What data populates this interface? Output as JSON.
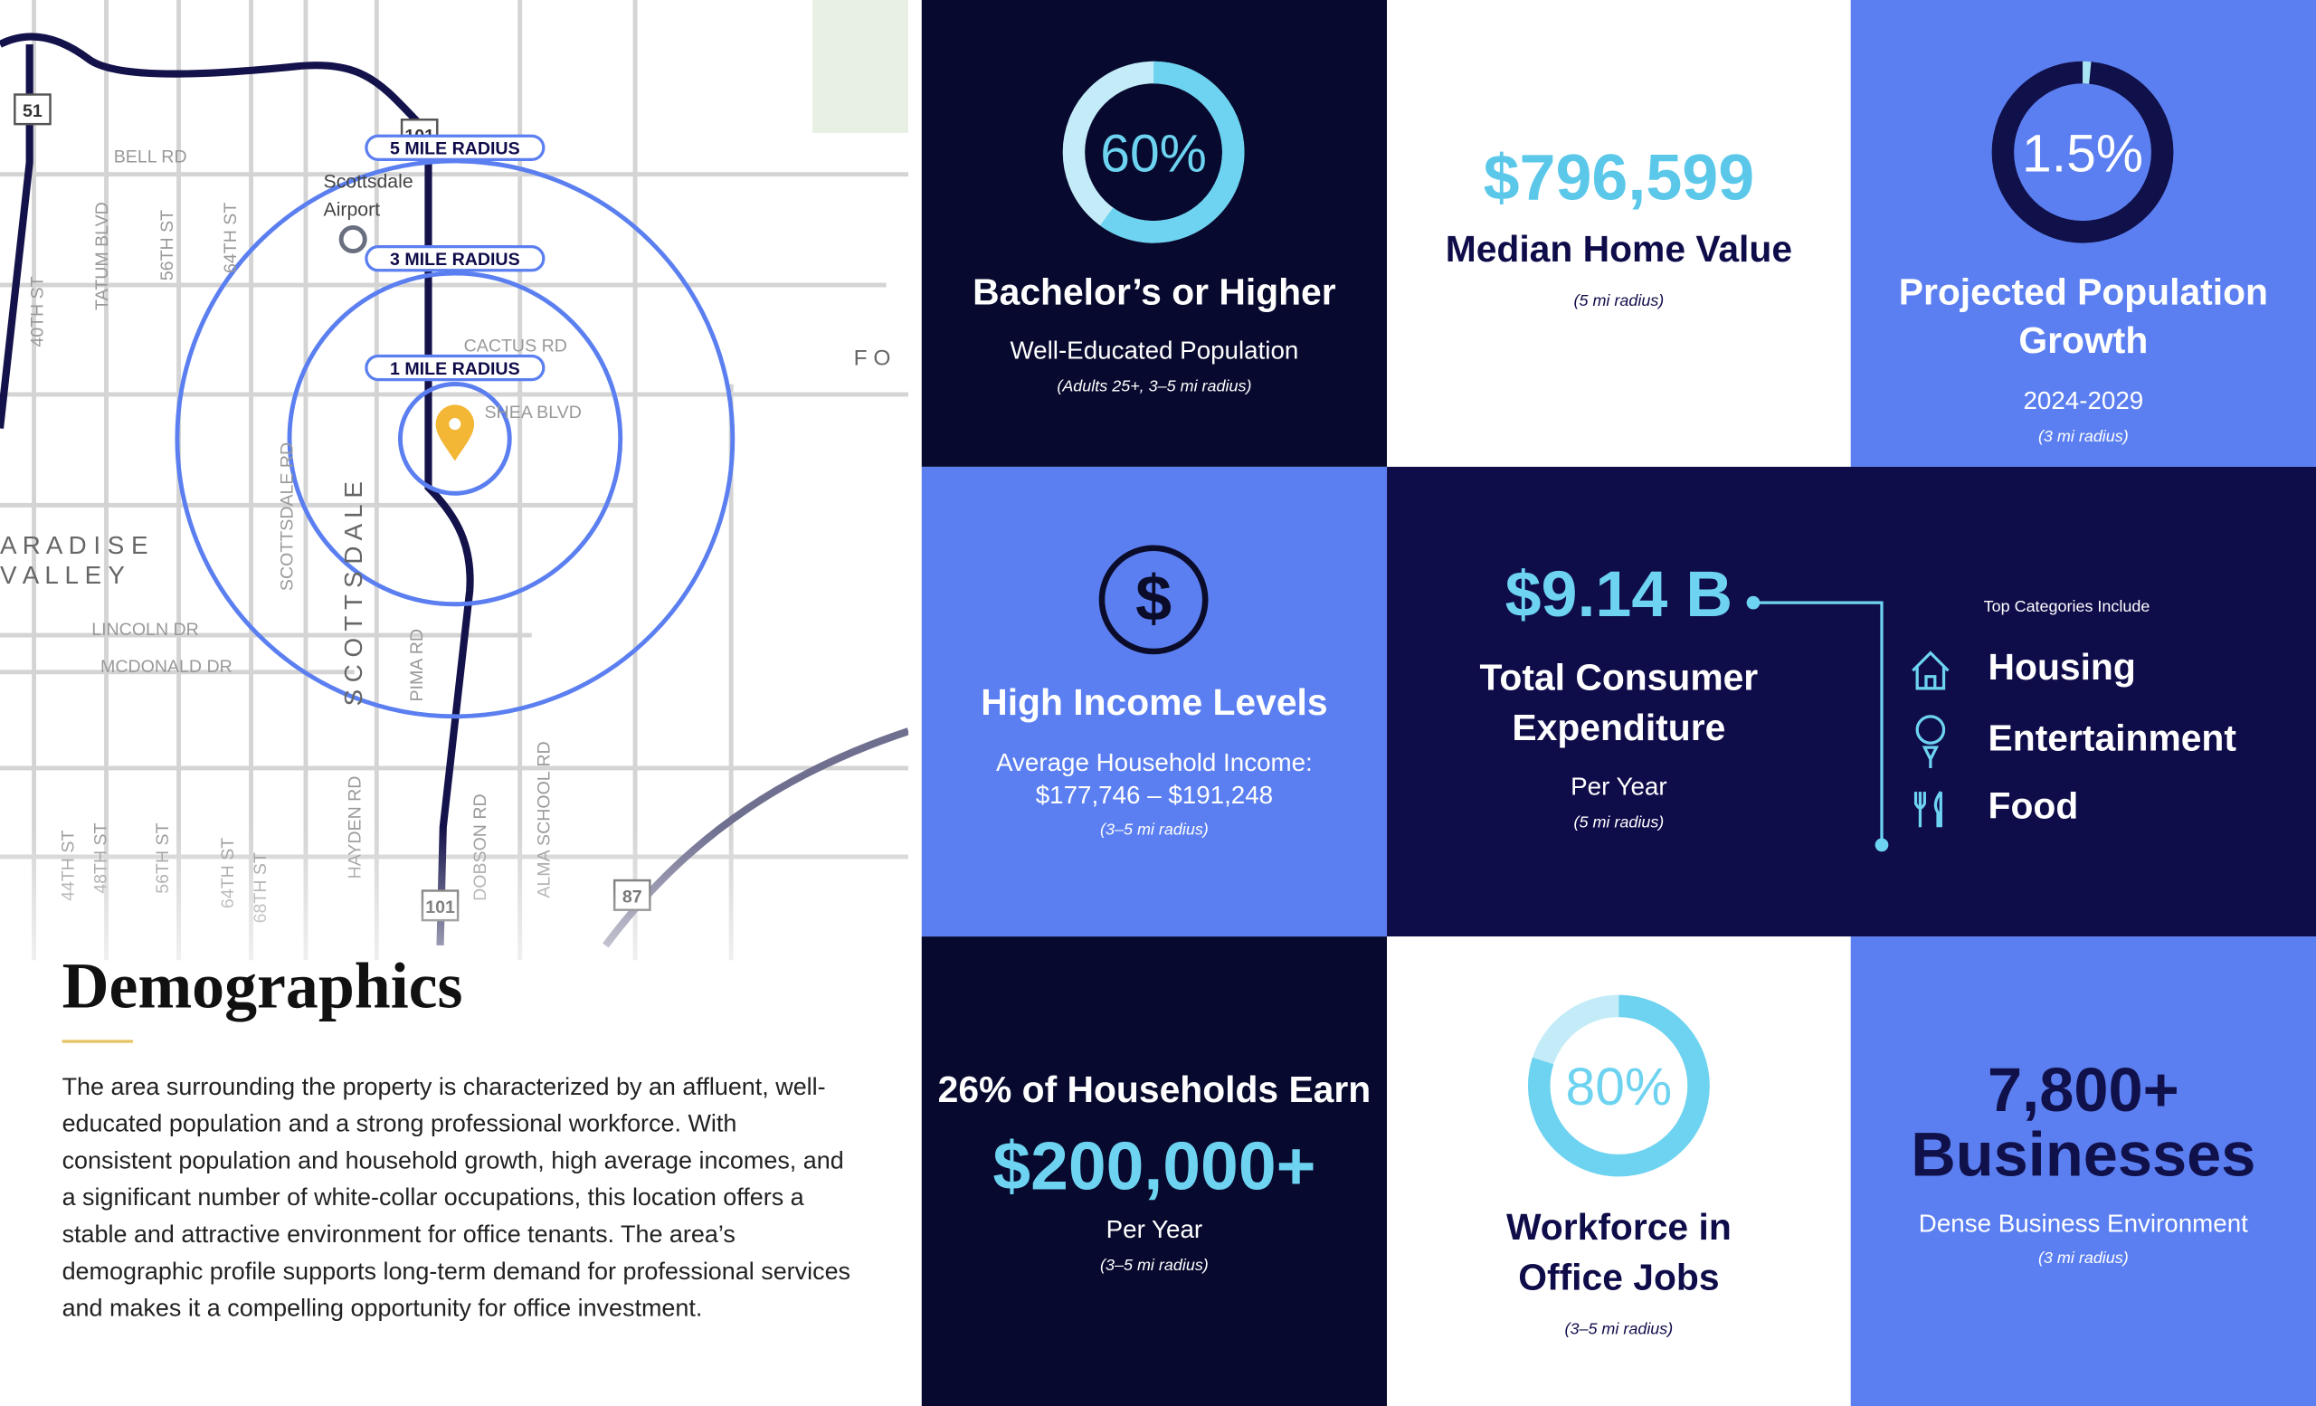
{
  "map": {
    "radius_labels": [
      "5 MILE RADIUS",
      "3 MILE RADIUS",
      "1 MILE RADIUS"
    ],
    "road_labels": [
      "BELL RD",
      "CACTUS RD",
      "SHEA BLVD",
      "LINCOLN DR",
      "MCDONALD DR",
      "TATUM BLVD",
      "56TH ST",
      "64TH ST",
      "40TH ST",
      "SCOTTSDALE RD",
      "PIMA RD",
      "HAYDEN RD",
      "DOBSON RD",
      "ALMA SCHOOL RD",
      "44TH ST",
      "48TH ST",
      "56TH ST",
      "64TH ST",
      "68TH ST"
    ],
    "place_labels": [
      "Scottsdale",
      "Airport",
      "S C O T T S D A L E",
      "A R A D I S E",
      "V A L L E Y",
      "F O"
    ],
    "shields": [
      "51",
      "101",
      "101",
      "87"
    ]
  },
  "intro": {
    "title": "Demographics",
    "paragraph": "The area surrounding the property is characterized by an affluent, well-educated population and a strong professional workforce. With consistent population and household growth, high average incomes, and a significant number of white-collar occupations, this location offers a stable and attractive environment for office tenants. The area’s demographic profile supports long-term demand for professional services and makes it a compelling opportunity for office investment."
  },
  "stats": {
    "education": {
      "value": 60,
      "label": "60%",
      "title": "Bachelor’s or Higher",
      "subtitle": "Well-Educated Population",
      "note": "(Adults 25+, 3–5 mi radius)"
    },
    "home_value": {
      "figure": "$796,599",
      "title": "Median Home Value",
      "note": "(5 mi radius)"
    },
    "growth": {
      "value": 1.5,
      "label": "1.5%",
      "title": [
        "Projected Population",
        "Growth"
      ],
      "subtitle": "2024-2029",
      "note": "(3 mi radius)"
    },
    "income": {
      "title": "High Income Levels",
      "subtitle": [
        "Average Household Income:",
        "$177,746 – $191,248"
      ],
      "note": "(3–5 mi radius)"
    },
    "expenditure": {
      "figure": "$9.14 B",
      "title": [
        "Total Consumer",
        "Expenditure"
      ],
      "subtitle": "Per Year",
      "note": "(5 mi radius)",
      "categories_title": "Top Categories Include",
      "categories": [
        "Housing",
        "Entertainment",
        "Food"
      ]
    },
    "high_earners": {
      "title": "26% of Households Earn",
      "figure": "$200,000+",
      "subtitle": "Per Year",
      "note": "(3–5 mi radius)"
    },
    "office_jobs": {
      "value": 80,
      "label": "80%",
      "title": [
        "Workforce in",
        "Office Jobs"
      ],
      "note": "(3–5 mi radius)"
    },
    "businesses": {
      "title": [
        "7,800+",
        "Businesses"
      ],
      "subtitle": "Dense Business Environment",
      "note": "(3 mi radius)"
    }
  }
}
